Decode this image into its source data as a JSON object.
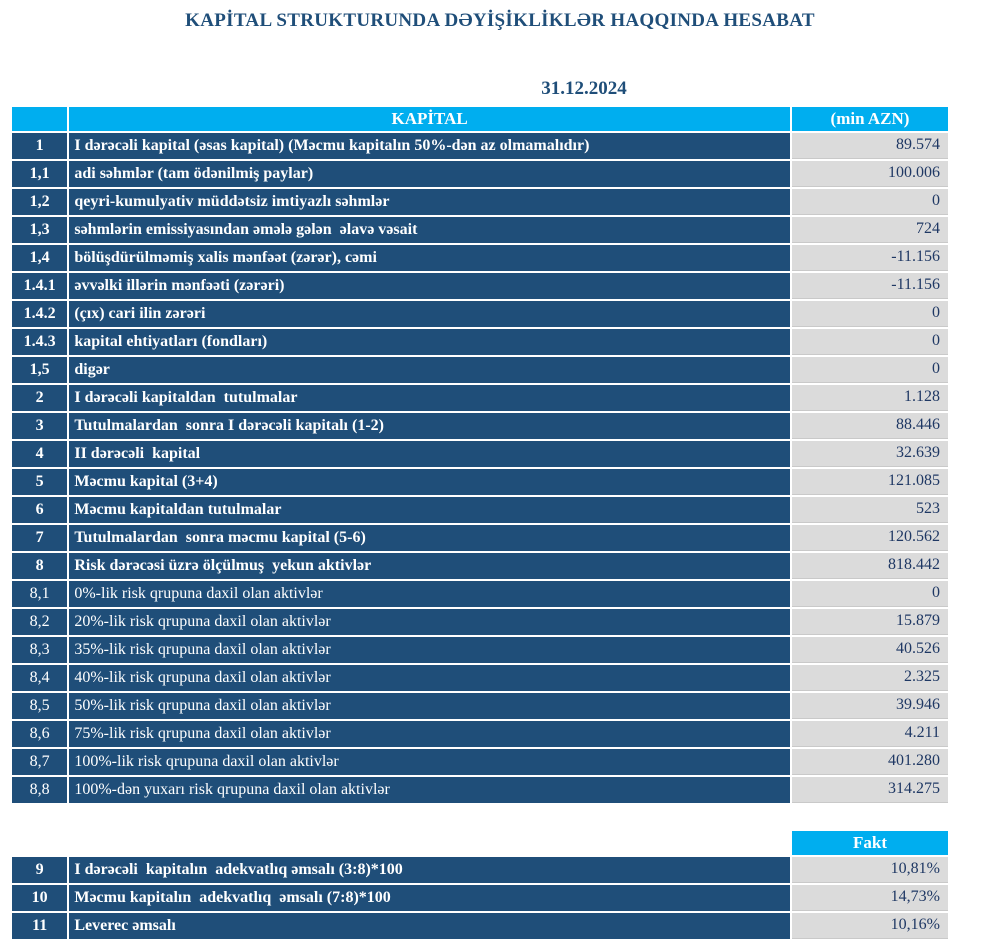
{
  "colors": {
    "page_bg": "#FFFFFF",
    "header_cyan": "#00AEEF",
    "row_navy": "#1F4E79",
    "value_gray": "#DBDBDB",
    "value_text": "#1F3864",
    "title_text": "#1F4E79"
  },
  "title": "KAPİTAL STRUKTURUNDA DƏYİŞİKLİKLƏR HAQQINDA HESABAT",
  "report_date": "31.12.2024",
  "capital_table": {
    "header": {
      "kapital": "KAPİTAL",
      "unit": "(min AZN)"
    },
    "rows": [
      {
        "no": "1",
        "label": "I dərəcəli kapital (əsas kapital) (Məcmu kapitalın 50%-dən az olmamalıdır)",
        "value": "89.574",
        "rowClass": "b"
      },
      {
        "no": "1,1",
        "label": "adi səhmlər (tam ödənilmiş paylar)",
        "value": "100.006",
        "rowClass": "b"
      },
      {
        "no": "1,2",
        "label": "qeyri-kumulyativ müddətsiz imtiyazlı səhmlər",
        "value": "0",
        "rowClass": "b"
      },
      {
        "no": "1,3",
        "label": "səhmlərin emissiyasından əmələ gələn  əlavə vəsait",
        "value": "724",
        "rowClass": "b"
      },
      {
        "no": "1,4",
        "label": "bölüşdürülməmiş xalis mənfəət (zərər), cəmi",
        "value": "-11.156",
        "rowClass": "b"
      },
      {
        "no": "1.4.1",
        "label": "əvvəlki illərin mənfəəti (zərəri)",
        "value": "-11.156",
        "rowClass": "b"
      },
      {
        "no": "1.4.2",
        "label": "(çıx) cari ilin zərəri",
        "value": "0",
        "rowClass": "b"
      },
      {
        "no": "1.4.3",
        "label": "kapital ehtiyatları (fondları)",
        "value": "0",
        "rowClass": "b"
      },
      {
        "no": "1,5",
        "label": "digər",
        "value": "0",
        "rowClass": "b"
      },
      {
        "no": "2",
        "label": "I dərəcəli kapitaldan  tutulmalar",
        "value": "1.128",
        "rowClass": "b"
      },
      {
        "no": "3",
        "label": "Tutulmalardan  sonra I dərəcəli kapitalı (1-2)",
        "value": "88.446",
        "rowClass": "b"
      },
      {
        "no": "4",
        "label": "II dərəcəli  kapital",
        "value": "32.639",
        "rowClass": "b"
      },
      {
        "no": "5",
        "label": "Məcmu kapital (3+4)",
        "value": "121.085",
        "rowClass": "b"
      },
      {
        "no": "6",
        "label": "Məcmu kapitaldan tutulmalar",
        "value": "523",
        "rowClass": "b"
      },
      {
        "no": "7",
        "label": "Tutulmalardan  sonra məcmu kapital (5-6)",
        "value": "120.562",
        "rowClass": "b"
      },
      {
        "no": "8",
        "label": "Risk dərəcəsi üzrə ölçülmuş  yekun aktivlər",
        "value": "818.442",
        "rowClass": "b"
      },
      {
        "no": "8,1",
        "label": "0%-lik risk qrupuna daxil olan aktivlər",
        "value": "0",
        "rowClass": "r"
      },
      {
        "no": "8,2",
        "label": "20%-lik risk qrupuna daxil olan aktivlər",
        "value": "15.879",
        "rowClass": "r"
      },
      {
        "no": "8,3",
        "label": "35%-lik risk qrupuna daxil olan aktivlər",
        "value": "40.526",
        "rowClass": "r"
      },
      {
        "no": "8,4",
        "label": "40%-lik risk qrupuna daxil olan aktivlər",
        "value": "2.325",
        "rowClass": "r"
      },
      {
        "no": "8,5",
        "label": "50%-lik risk qrupuna daxil olan aktivlər",
        "value": "39.946",
        "rowClass": "r"
      },
      {
        "no": "8,6",
        "label": "75%-lik risk qrupuna daxil olan aktivlər",
        "value": "4.211",
        "rowClass": "r"
      },
      {
        "no": "8,7",
        "label": "100%-lik risk qrupuna daxil olan aktivlər",
        "value": "401.280",
        "rowClass": "r"
      },
      {
        "no": "8,8",
        "label": "100%-dən yuxarı risk qrupuna daxil olan aktivlər",
        "value": "314.275",
        "rowClass": "r"
      }
    ]
  },
  "ratios_table": {
    "header": {
      "fakt": "Fakt"
    },
    "rows": [
      {
        "no": "9",
        "label": "I dərəcəli  kapitalın  adekvatlıq əmsalı (3:8)*100",
        "value": "10,81%",
        "rowClass": "b"
      },
      {
        "no": "10",
        "label": "Məcmu kapitalın  adekvatlıq  əmsalı (7:8)*100",
        "value": "14,73%",
        "rowClass": "b"
      },
      {
        "no": "11",
        "label": "Leverec əmsalı",
        "value": "10,16%",
        "rowClass": "b"
      }
    ]
  }
}
